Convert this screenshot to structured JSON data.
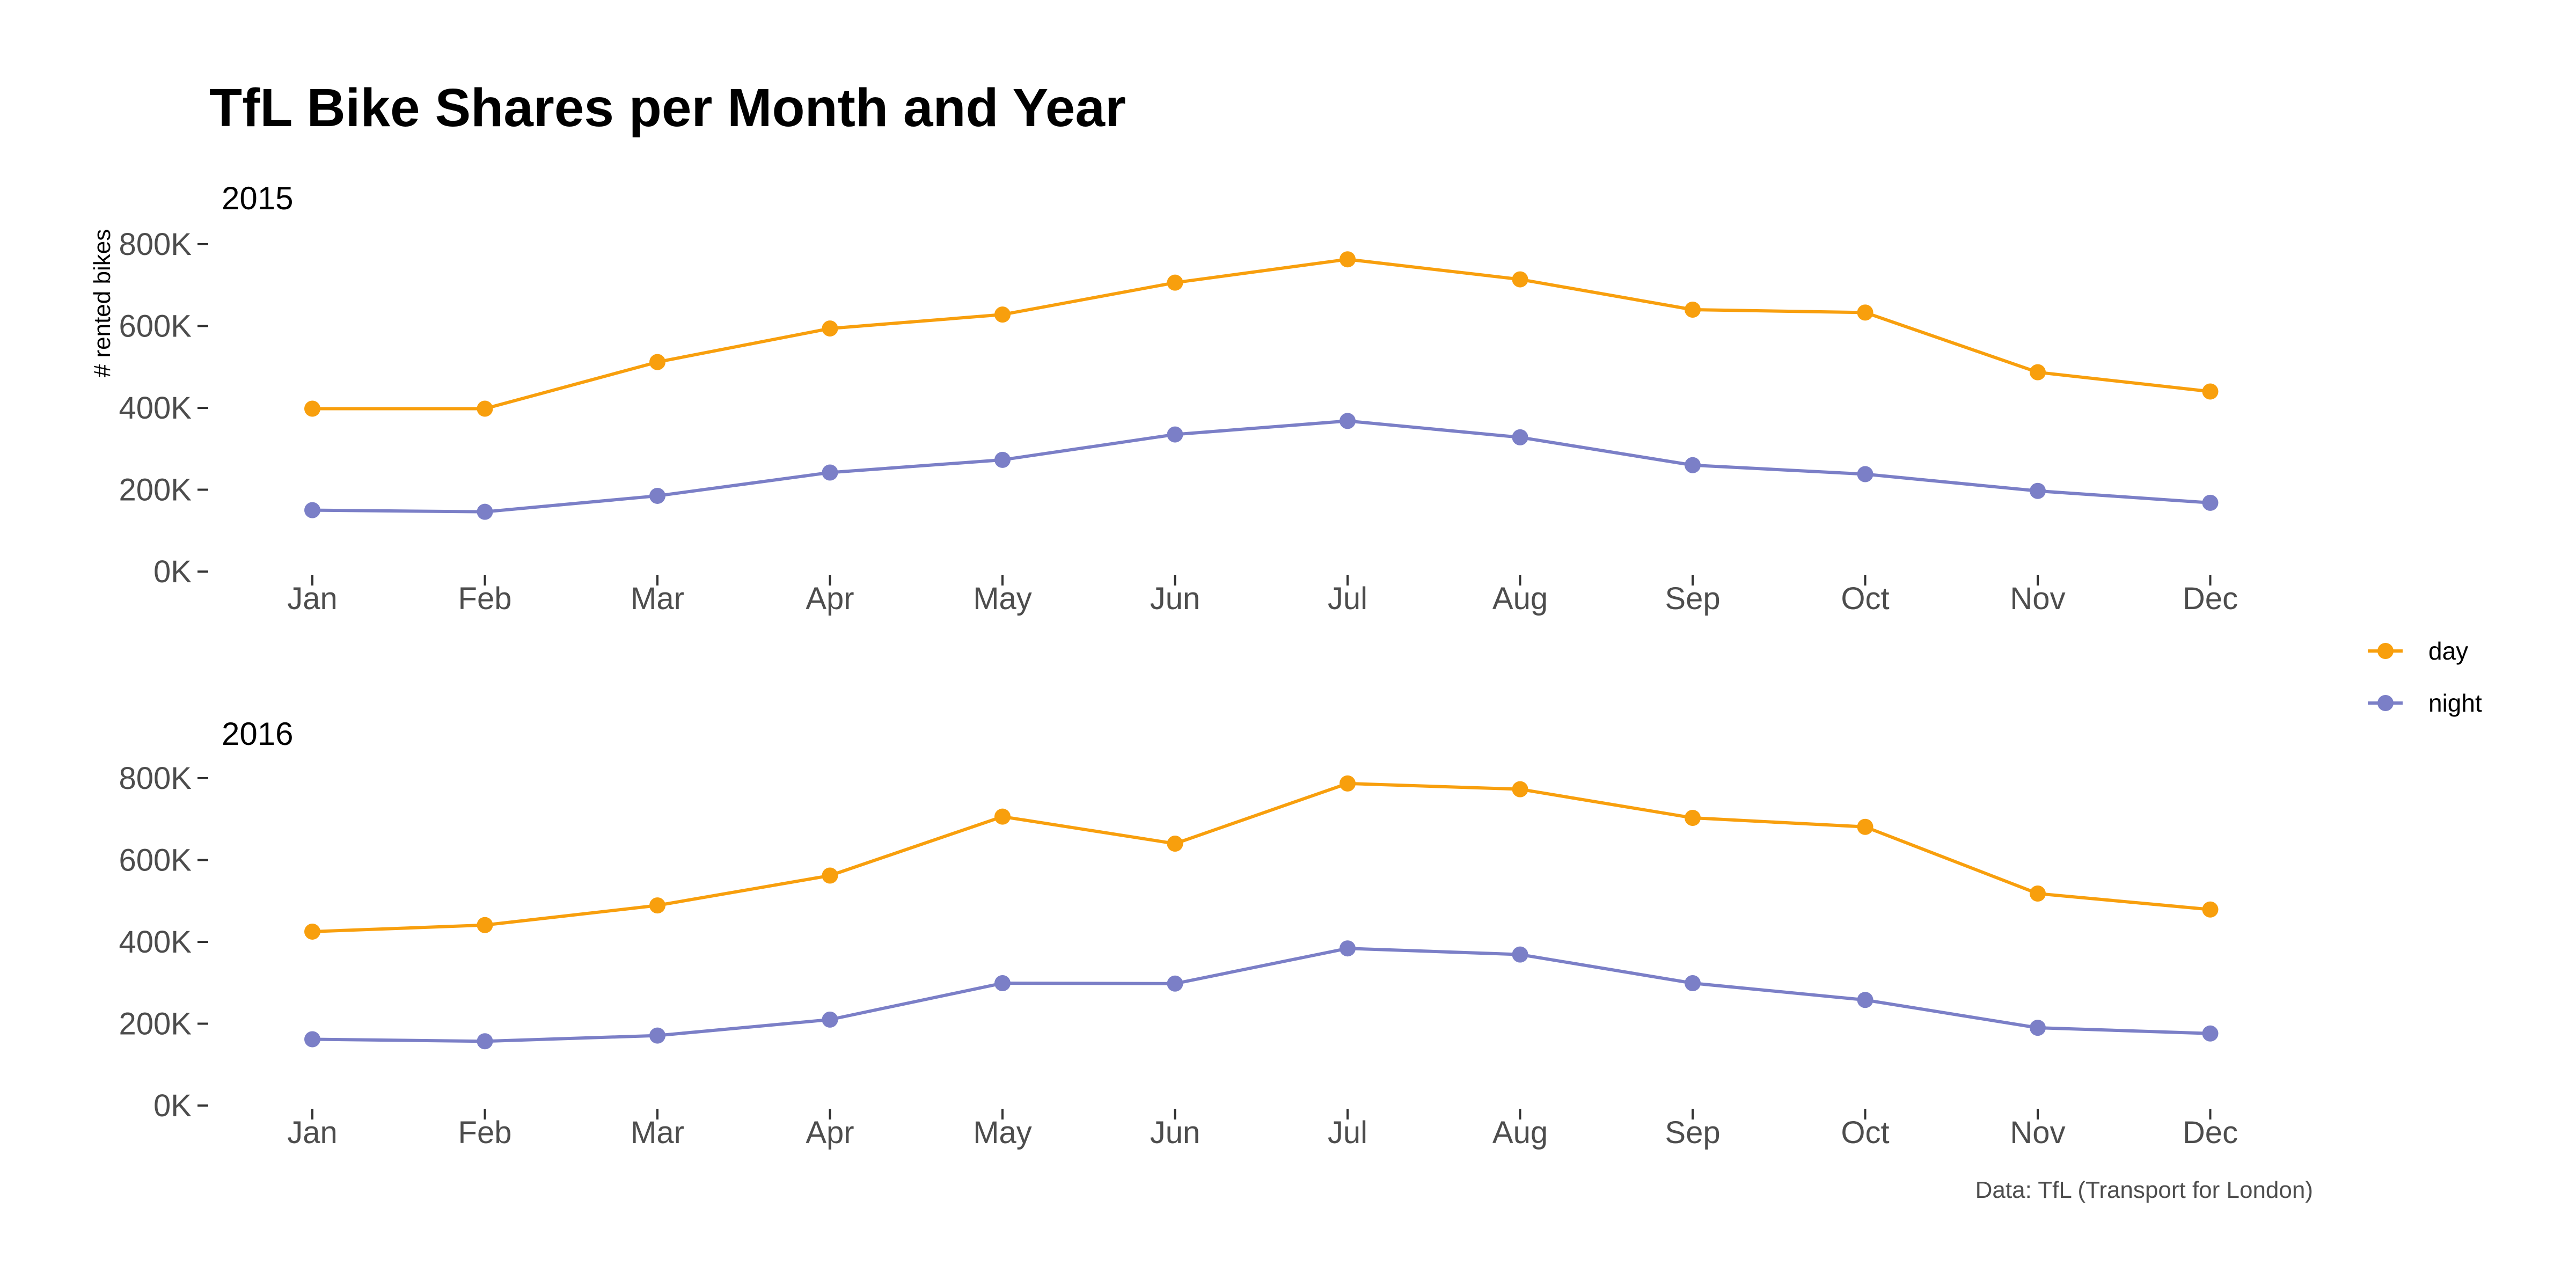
{
  "chart_data": {
    "type": "line",
    "title": "TfL Bike Shares per Month and Year",
    "ylabel": "# rented bikes",
    "caption": "Data: TfL (Transport for London)",
    "categories": [
      "Jan",
      "Feb",
      "Mar",
      "Apr",
      "May",
      "Jun",
      "Jul",
      "Aug",
      "Sep",
      "Oct",
      "Nov",
      "Dec"
    ],
    "yticks": [
      "0K",
      "200K",
      "400K",
      "600K",
      "800K"
    ],
    "ytick_values": [
      0,
      200000,
      400000,
      600000,
      800000
    ],
    "ylim": [
      0,
      800000
    ],
    "legend": {
      "position": "right",
      "items": [
        {
          "name": "day",
          "color": "#F89F0D"
        },
        {
          "name": "night",
          "color": "#7B7FC7"
        }
      ]
    },
    "panels": [
      {
        "label": "2015",
        "series": [
          {
            "name": "day",
            "color": "#F89F0D",
            "values": [
              398000,
              398000,
              512000,
              594000,
              628000,
              706000,
              763000,
              714000,
              640000,
              633000,
              487000,
              440000
            ]
          },
          {
            "name": "night",
            "color": "#7B7FC7",
            "values": [
              150000,
              146000,
              185000,
              242000,
              273000,
              335000,
              368000,
              328000,
              260000,
              238000,
              197000,
              168000
            ]
          }
        ]
      },
      {
        "label": "2016",
        "series": [
          {
            "name": "day",
            "color": "#F89F0D",
            "values": [
              425000,
              441000,
              489000,
              562000,
              706000,
              640000,
              787000,
              773000,
              703000,
              681000,
              518000,
              479000
            ]
          },
          {
            "name": "night",
            "color": "#7B7FC7",
            "values": [
              162000,
              157000,
              171000,
              210000,
              299000,
              298000,
              384000,
              369000,
              299000,
              258000,
              190000,
              176000
            ]
          }
        ]
      }
    ]
  }
}
